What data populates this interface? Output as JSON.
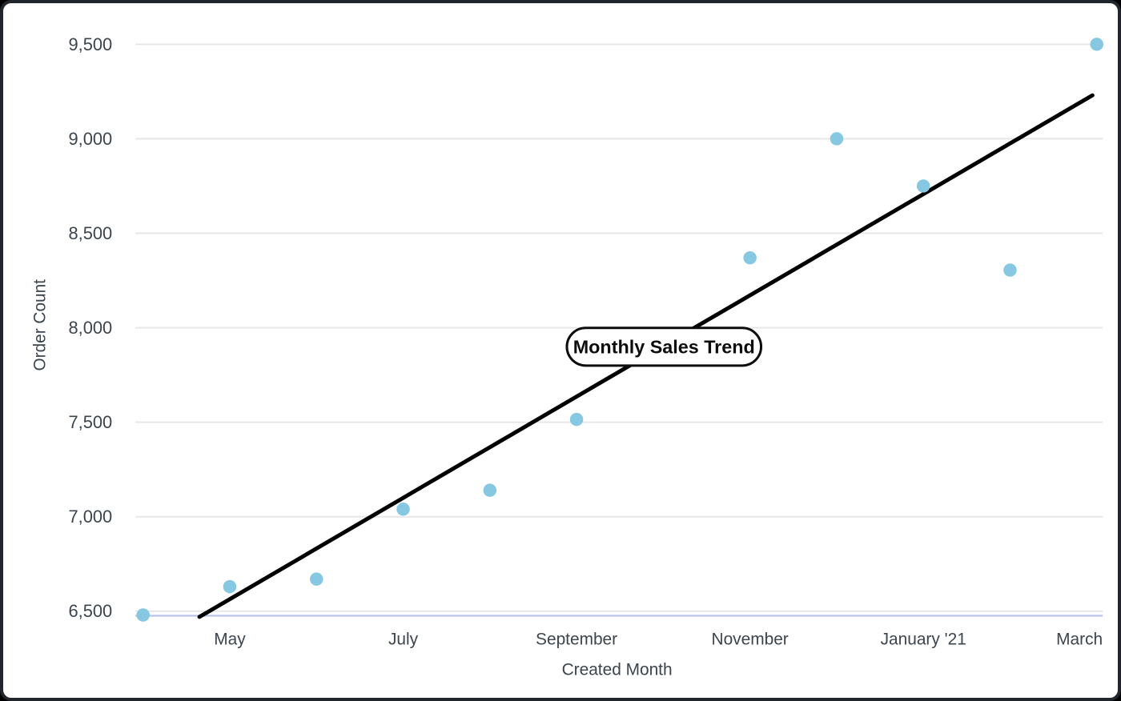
{
  "chart_data": {
    "type": "scatter",
    "annotation_label": "Monthly Sales Trend",
    "xlabel": "Created Month",
    "ylabel": "Order Count",
    "y_ticks": [
      {
        "value": 6500,
        "label": "6,500"
      },
      {
        "value": 7000,
        "label": "7,000"
      },
      {
        "value": 7500,
        "label": "7,500"
      },
      {
        "value": 8000,
        "label": "8,000"
      },
      {
        "value": 8500,
        "label": "8,500"
      },
      {
        "value": 9000,
        "label": "9,000"
      },
      {
        "value": 9500,
        "label": "9,500"
      }
    ],
    "x_ticks": [
      {
        "month_index": 1,
        "label": "May"
      },
      {
        "month_index": 3,
        "label": "July"
      },
      {
        "month_index": 5,
        "label": "September"
      },
      {
        "month_index": 7,
        "label": "November"
      },
      {
        "month_index": 9,
        "label": "January '21"
      },
      {
        "month_index": 11,
        "label": "March"
      }
    ],
    "ylim": [
      6500,
      9500
    ],
    "grid": "horizontal",
    "legend_position": "none",
    "points": [
      {
        "month": "April '20",
        "month_index": 0,
        "value": 6480
      },
      {
        "month": "May",
        "month_index": 1,
        "value": 6630
      },
      {
        "month": "June",
        "month_index": 2,
        "value": 6670
      },
      {
        "month": "July",
        "month_index": 3,
        "value": 7040
      },
      {
        "month": "August",
        "month_index": 4,
        "value": 7140
      },
      {
        "month": "September",
        "month_index": 5,
        "value": 7515
      },
      {
        "month": "November",
        "month_index": 7,
        "value": 8370
      },
      {
        "month": "December",
        "month_index": 8,
        "value": 9000
      },
      {
        "month": "January '21",
        "month_index": 9,
        "value": 8750
      },
      {
        "month": "February",
        "month_index": 10,
        "value": 8305
      },
      {
        "month": "March",
        "month_index": 11,
        "value": 9500
      }
    ],
    "trendline": {
      "start_month_frac": 0.65,
      "start_value": 6470,
      "end_month_frac": 10.95,
      "end_value": 9230
    },
    "colors": {
      "point": "#86c7e2",
      "trend": "#000000",
      "grid": "#e7e7e7",
      "axis_line": "#bcc6e8",
      "label_text": "#3c454e",
      "annotation_border": "#0d0d0d",
      "annotation_bg": "#ffffff"
    }
  }
}
